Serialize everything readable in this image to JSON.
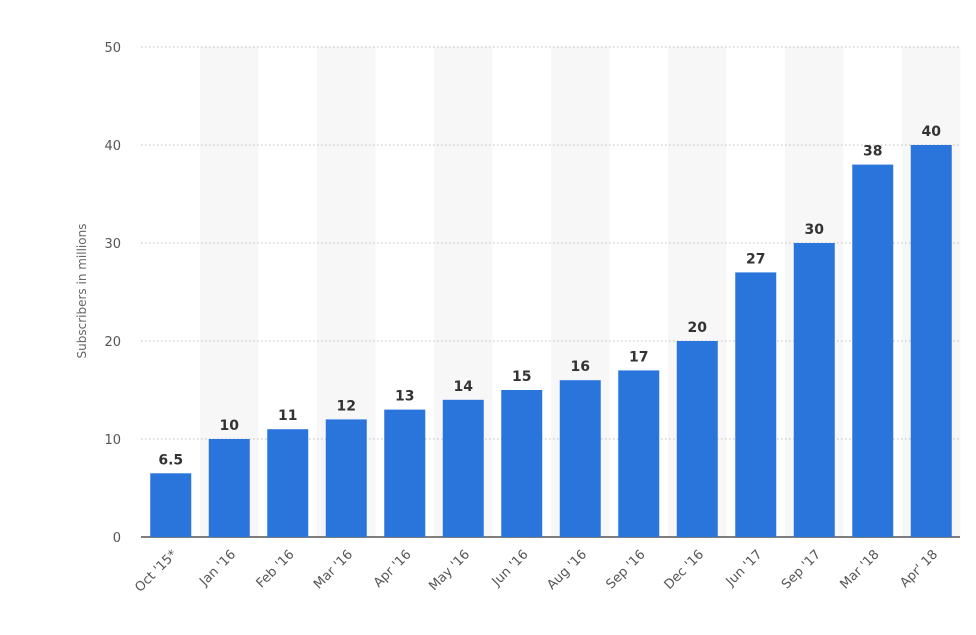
{
  "chart_data": {
    "type": "bar",
    "title": "",
    "xlabel": "",
    "ylabel": "Subscribers in millions",
    "ylim": [
      0,
      50
    ],
    "yticks": [
      0,
      10,
      20,
      30,
      40,
      50
    ],
    "categories": [
      "Oct '15*",
      "Jan '16",
      "Feb '16",
      "Mar '16",
      "Apr '16",
      "May '16",
      "Jun '16",
      "Aug '16",
      "Sep '16",
      "Dec '16",
      "Jun '17",
      "Sep '17",
      "Mar '18",
      "Apr' 18"
    ],
    "values": [
      6.5,
      10,
      11,
      12,
      13,
      14,
      15,
      16,
      17,
      20,
      27,
      30,
      38,
      40
    ],
    "value_labels": [
      "6.5",
      "10",
      "11",
      "12",
      "13",
      "14",
      "15",
      "16",
      "17",
      "20",
      "27",
      "30",
      "38",
      "40"
    ],
    "bar_color": "#2a75dc",
    "band_color": "#f7f7f7",
    "grid": true,
    "grid_style": "dotted",
    "legend": "none"
  }
}
